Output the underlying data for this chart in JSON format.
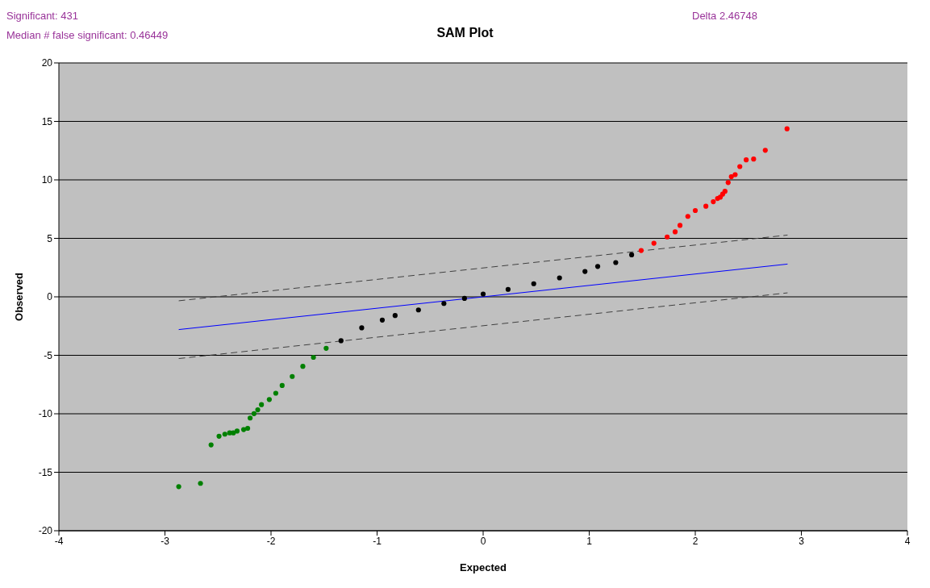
{
  "chart_data": {
    "type": "scatter",
    "title": "SAM Plot",
    "xlabel": "Expected",
    "ylabel": "Observed",
    "annotations": [
      "Significant: 431",
      "Median # false significant: 0.46449",
      "Delta 2.46748"
    ],
    "xlim": [
      -4,
      4
    ],
    "xticks": [
      -4,
      -3,
      -2,
      -1,
      0,
      1,
      2,
      3,
      4
    ],
    "ylim": [
      -20,
      20
    ],
    "yticks": [
      -20,
      -15,
      -10,
      -5,
      0,
      5,
      10,
      15,
      20
    ],
    "grid": "y",
    "legend": false,
    "marker": "circle",
    "series": [
      {
        "type": "line",
        "color": "#0000ff",
        "line_style": "solid",
        "marker": "none",
        "x": [
          -2.87,
          2.87
        ],
        "values": [
          -2.8,
          2.8
        ]
      },
      {
        "type": "line",
        "color": "#404040",
        "line_style": "dashed",
        "marker": "none",
        "x": [
          -2.87,
          2.87
        ],
        "values": [
          -0.34,
          5.28
        ]
      },
      {
        "type": "line",
        "color": "#404040",
        "line_style": "dashed",
        "marker": "none",
        "x": [
          -2.87,
          2.87
        ],
        "values": [
          -5.28,
          0.34
        ]
      },
      {
        "color": "#008000",
        "x": [
          -2.87,
          -2.665,
          -2.565,
          -2.49,
          -2.435,
          -2.39,
          -2.355,
          -2.32,
          -2.258,
          -2.22,
          -2.197,
          -2.16,
          -2.125,
          -2.09,
          -2.016,
          -1.955,
          -1.895,
          -1.8,
          -1.7,
          -1.6,
          -1.48
        ],
        "values": [
          -16.23,
          -15.95,
          -12.66,
          -11.92,
          -11.74,
          -11.63,
          -11.63,
          -11.48,
          -11.35,
          -11.24,
          -10.36,
          -9.99,
          -9.66,
          -9.22,
          -8.78,
          -8.24,
          -7.58,
          -6.81,
          -5.94,
          -5.17,
          -4.4
        ]
      },
      {
        "color": "#000000",
        "x": [
          -1.34,
          -1.145,
          -0.951,
          -0.83,
          -0.61,
          -0.37,
          -0.176,
          0,
          0.235,
          0.477,
          0.72,
          0.96,
          1.08,
          1.25,
          1.4
        ],
        "values": [
          -3.75,
          -2.65,
          -1.99,
          -1.6,
          -1.12,
          -0.57,
          -0.13,
          0.24,
          0.64,
          1.12,
          1.62,
          2.17,
          2.6,
          2.93,
          3.59
        ]
      },
      {
        "color": "#ff0000",
        "x": [
          1.49,
          1.61,
          1.735,
          1.81,
          1.856,
          1.93,
          2.0,
          2.1,
          2.17,
          2.21,
          2.236,
          2.258,
          2.28,
          2.31,
          2.34,
          2.376,
          2.42,
          2.48,
          2.55,
          2.66,
          2.865
        ],
        "values": [
          3.96,
          4.58,
          5.12,
          5.56,
          6.11,
          6.88,
          7.38,
          7.75,
          8.13,
          8.41,
          8.52,
          8.78,
          9.02,
          9.77,
          10.27,
          10.45,
          11.14,
          11.71,
          11.78,
          12.53,
          14.37
        ]
      }
    ]
  }
}
